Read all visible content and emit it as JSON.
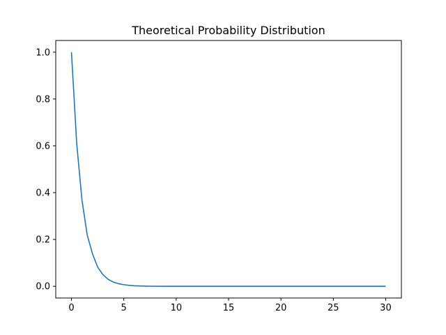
{
  "chart_data": {
    "type": "line",
    "title": "Theoretical Probability Distribution",
    "xlabel": "",
    "ylabel": "",
    "xlim": [
      -1.5,
      31.5
    ],
    "ylim": [
      -0.05,
      1.05
    ],
    "xticks": [
      0,
      5,
      10,
      15,
      20,
      25,
      30
    ],
    "yticks": [
      0.0,
      0.2,
      0.4,
      0.6,
      0.8,
      1.0
    ],
    "xtick_labels": [
      "0",
      "5",
      "10",
      "15",
      "20",
      "25",
      "30"
    ],
    "ytick_labels": [
      "0.0",
      "0.2",
      "0.4",
      "0.6",
      "0.8",
      "1.0"
    ],
    "grid": false,
    "series": [
      {
        "color": "#1f77b4",
        "x": [
          0,
          0.5,
          1,
          1.5,
          2,
          2.5,
          3,
          3.5,
          4,
          4.5,
          5,
          5.5,
          6,
          6.5,
          7,
          8,
          9,
          10,
          12,
          14,
          16,
          18,
          20,
          22,
          24,
          26,
          28,
          30
        ],
        "y": [
          1.0,
          0.61,
          0.37,
          0.22,
          0.14,
          0.082,
          0.05,
          0.03,
          0.018,
          0.011,
          0.007,
          0.004,
          0.0025,
          0.0015,
          0.0009,
          0.0003,
          0.0001,
          5e-05,
          0.0,
          0.0,
          0.0,
          0.0,
          0.0,
          0.0,
          0.0,
          0.0,
          0.0,
          0.0
        ]
      }
    ]
  }
}
